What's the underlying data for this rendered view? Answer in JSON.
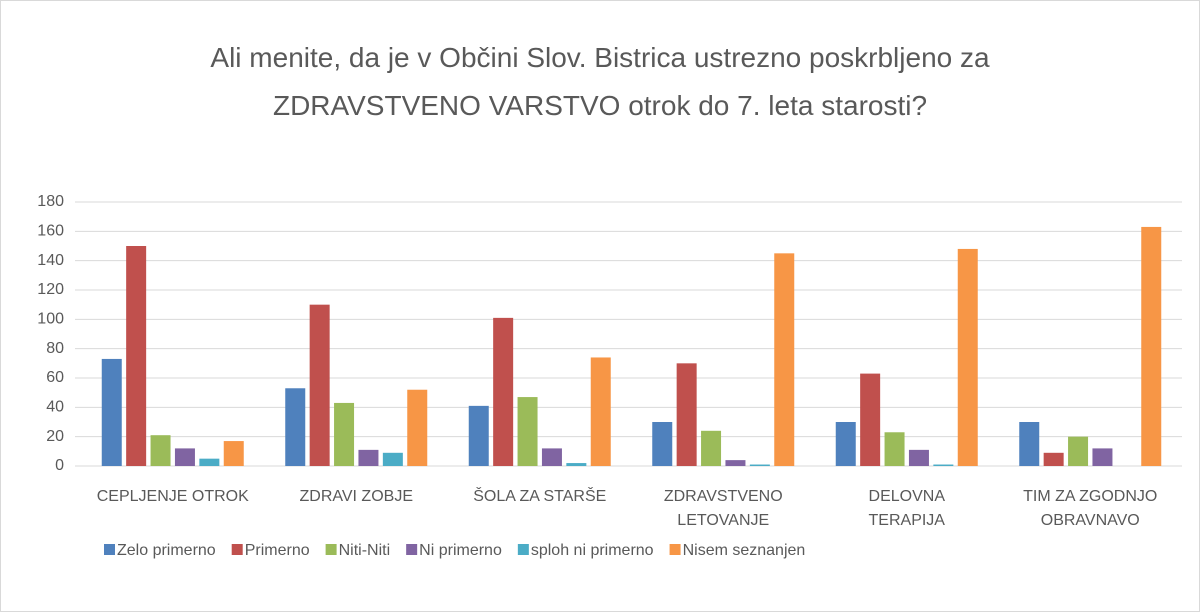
{
  "chart_data": {
    "type": "bar",
    "title": "Ali menite, da je v Občini Slov. Bistrica ustrezno poskrbljeno za ZDRAVSTVENO VARSTVO otrok do 7. leta starosti?",
    "categories": [
      "CEPLJENJE OTROK",
      "ZDRAVI ZOBJE",
      "ŠOLA ZA STARŠE",
      "ZDRAVSTVENO LETOVANJE",
      "DELOVNA TERAPIJA",
      "TIM ZA ZGODNJO OBRAVNAVO"
    ],
    "series": [
      {
        "name": "Zelo primerno",
        "color": "#4f81bd",
        "values": [
          73,
          53,
          41,
          30,
          30,
          30
        ]
      },
      {
        "name": "Primerno",
        "color": "#c0504d",
        "values": [
          150,
          110,
          101,
          70,
          63,
          9
        ]
      },
      {
        "name": "Niti-Niti",
        "color": "#9bbb59",
        "values": [
          21,
          43,
          47,
          24,
          23,
          20
        ]
      },
      {
        "name": "Ni primerno",
        "color": "#8064a2",
        "values": [
          12,
          11,
          12,
          4,
          11,
          12
        ]
      },
      {
        "name": "sploh ni primerno",
        "color": "#4bacc6",
        "values": [
          5,
          9,
          2,
          1,
          1,
          0
        ]
      },
      {
        "name": "Nisem seznanjen",
        "color": "#f79646",
        "values": [
          17,
          52,
          74,
          145,
          148,
          163
        ]
      }
    ],
    "ylim": [
      0,
      180
    ],
    "yticks": [
      0,
      20,
      40,
      60,
      80,
      100,
      120,
      140,
      160,
      180
    ],
    "grid": true,
    "legend": "bottom"
  }
}
